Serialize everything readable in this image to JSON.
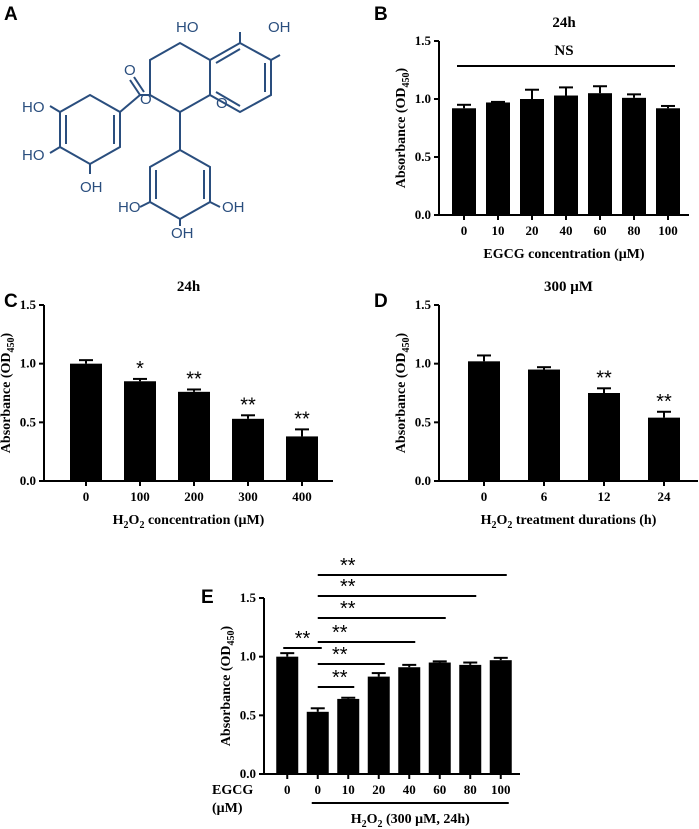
{
  "colors": {
    "bar": "#000000",
    "molecule": "#2a4e7e"
  },
  "panels": {
    "a": {
      "letter": "A"
    },
    "b": {
      "letter": "B"
    },
    "c": {
      "letter": "C"
    },
    "d": {
      "letter": "D"
    },
    "e": {
      "letter": "E"
    }
  },
  "molecule": {
    "labels": [
      "HO",
      "OH",
      "HO",
      "HO",
      "OH",
      "O",
      "O",
      "O",
      "HO",
      "OH",
      "OH"
    ]
  },
  "chart_data": [
    {
      "id": "b",
      "type": "bar",
      "title": "24h",
      "xlabel": "EGCG concentration (μM)",
      "ylabel": "Absorbance (OD450)",
      "ylabel_main": "Absorbance (OD",
      "ylabel_sub": "450",
      "ylabel_close": ")",
      "ylim": [
        0,
        1.5
      ],
      "yticks": [
        "0.0",
        "0.5",
        "1.0",
        "1.5"
      ],
      "yticks_v": [
        0,
        0.5,
        1.0,
        1.5
      ],
      "categories": [
        "0",
        "10",
        "20",
        "40",
        "60",
        "80",
        "100"
      ],
      "values": [
        0.92,
        0.97,
        1.0,
        1.03,
        1.05,
        1.01,
        0.92
      ],
      "errors": [
        0.03,
        0.005,
        0.08,
        0.07,
        0.06,
        0.03,
        0.02
      ],
      "annotation": "NS",
      "stars": []
    },
    {
      "id": "c",
      "type": "bar",
      "title": "24h",
      "xlabel": "H2O2 concentration (μM)",
      "xlabel_pre": "H",
      "xlabel_sub": "2",
      "xlabel_mid": "O",
      "xlabel_sub2": "2",
      "xlabel_post": " concentration (μM)",
      "ylabel": "Absorbance (OD450)",
      "ylabel_main": "Absorbance (OD",
      "ylabel_sub": "450",
      "ylabel_close": ")",
      "ylim": [
        0,
        1.5
      ],
      "yticks": [
        "0.0",
        "0.5",
        "1.0",
        "1.5"
      ],
      "yticks_v": [
        0,
        0.5,
        1.0,
        1.5
      ],
      "categories": [
        "0",
        "100",
        "200",
        "300",
        "400"
      ],
      "values": [
        1.0,
        0.85,
        0.76,
        0.53,
        0.38
      ],
      "errors": [
        0.03,
        0.02,
        0.02,
        0.03,
        0.06
      ],
      "stars": [
        "",
        "*",
        "**",
        "**",
        "**"
      ]
    },
    {
      "id": "d",
      "type": "bar",
      "title": "300 μM",
      "xlabel": "H2O2 treatment durations (h)",
      "xlabel_pre": "H",
      "xlabel_sub": "2",
      "xlabel_mid": "O",
      "xlabel_sub2": "2",
      "xlabel_post": " treatment durations (h)",
      "ylabel": "Absorbance (OD450)",
      "ylabel_main": "Absorbance (OD",
      "ylabel_sub": "450",
      "ylabel_close": ")",
      "ylim": [
        0,
        1.5
      ],
      "yticks": [
        "0.0",
        "0.5",
        "1.0",
        "1.5"
      ],
      "yticks_v": [
        0,
        0.5,
        1.0,
        1.5
      ],
      "categories": [
        "0",
        "6",
        "12",
        "24"
      ],
      "values": [
        1.02,
        0.95,
        0.75,
        0.54
      ],
      "errors": [
        0.05,
        0.02,
        0.04,
        0.05
      ],
      "stars": [
        "",
        "",
        "**",
        "**"
      ]
    },
    {
      "id": "e",
      "type": "bar",
      "title": "",
      "xlabel": "H2O2 (300 μM, 24h)",
      "xlabel_pre": "H",
      "xlabel_sub": "2",
      "xlabel_mid": "O",
      "xlabel_sub2": "2",
      "xlabel_post": " (300 μM, 24h)",
      "row_label_1": "EGCG",
      "row_label_2": "(μM)",
      "ylabel": "Absorbance (OD450)",
      "ylabel_main": "Absorbance (OD",
      "ylabel_sub": "450",
      "ylabel_close": ")",
      "ylim": [
        0,
        1.5
      ],
      "yticks": [
        "0.0",
        "0.5",
        "1.0",
        "1.5"
      ],
      "yticks_v": [
        0,
        0.5,
        1.0,
        1.5
      ],
      "categories": [
        "0",
        "0",
        "10",
        "20",
        "40",
        "60",
        "80",
        "100"
      ],
      "values": [
        1.0,
        0.53,
        0.64,
        0.83,
        0.91,
        0.95,
        0.93,
        0.97
      ],
      "errors": [
        0.03,
        0.03,
        0.01,
        0.03,
        0.02,
        0.01,
        0.02,
        0.02
      ],
      "comparisons": [
        {
          "from": 0,
          "to": 1,
          "label": "**"
        },
        {
          "from": 1,
          "to": 2,
          "label": "**"
        },
        {
          "from": 1,
          "to": 3,
          "label": "**"
        },
        {
          "from": 1,
          "to": 4,
          "label": "**"
        },
        {
          "from": 1,
          "to": 5,
          "label": "**"
        },
        {
          "from": 1,
          "to": 6,
          "label": "**"
        },
        {
          "from": 1,
          "to": 7,
          "label": "**"
        }
      ]
    }
  ]
}
